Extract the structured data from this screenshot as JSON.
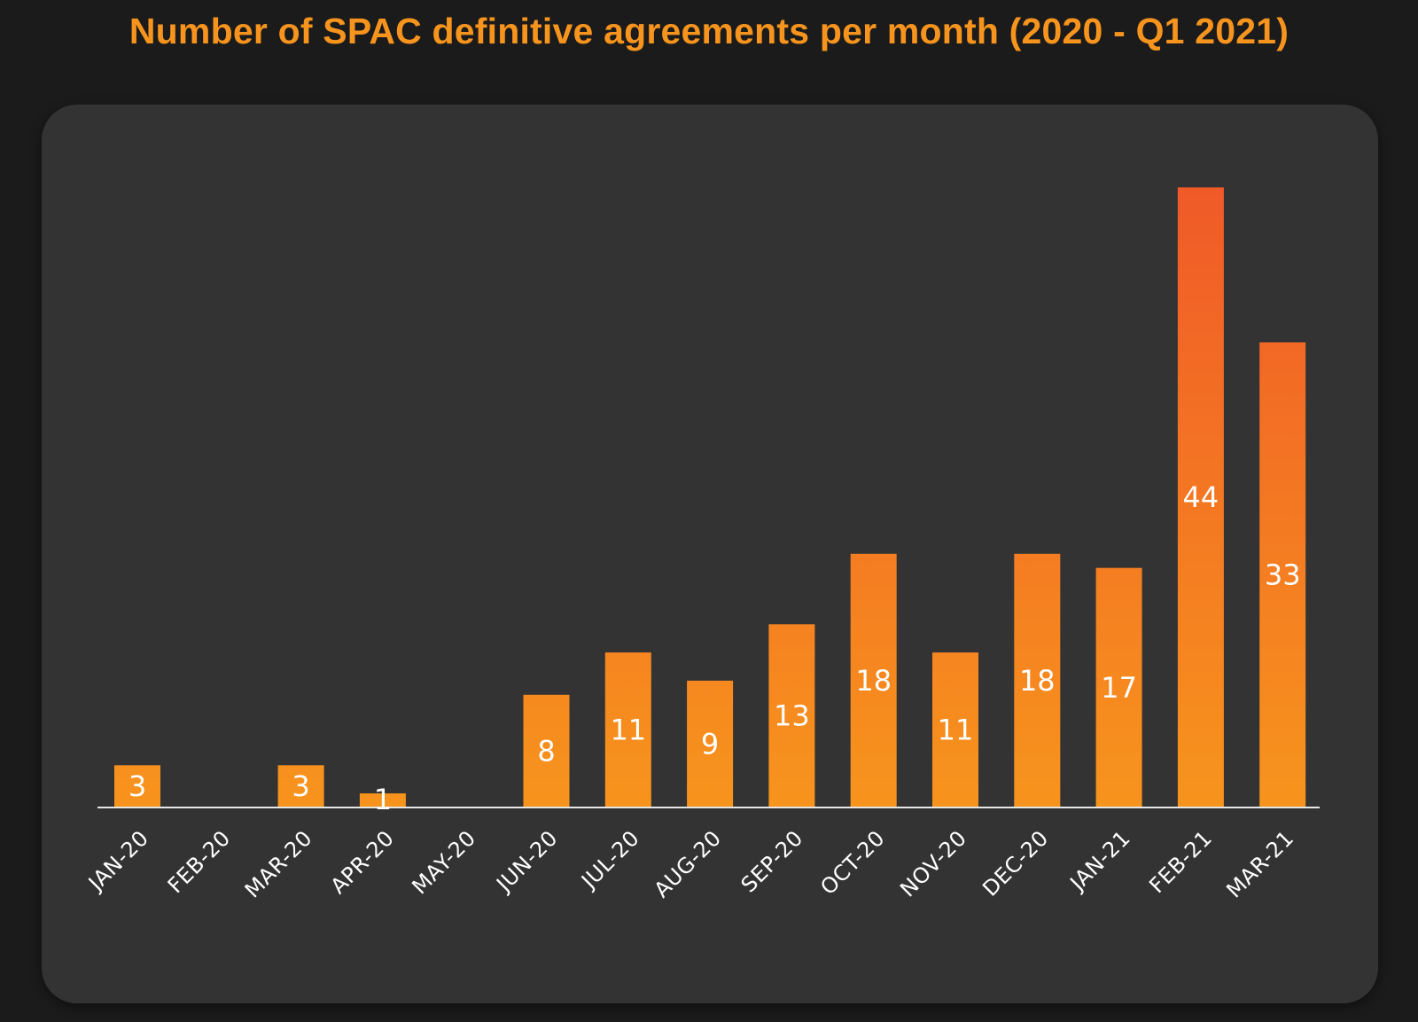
{
  "chart_data": {
    "type": "bar",
    "title": "Number of SPAC definitive agreements per month (2020 - Q1 2021)",
    "xlabel": "",
    "ylabel": "",
    "categories": [
      "JAN-20",
      "FEB-20",
      "MAR-20",
      "APR-20",
      "MAY-20",
      "JUN-20",
      "JUL-20",
      "AUG-20",
      "SEP-20",
      "OCT-20",
      "NOV-20",
      "DEC-20",
      "JAN-21",
      "FEB-21",
      "MAR-21"
    ],
    "values": [
      3,
      0,
      3,
      1,
      0,
      8,
      11,
      9,
      13,
      18,
      11,
      18,
      17,
      44,
      33
    ],
    "value_labels": [
      "3",
      "",
      "3",
      "1",
      "",
      "8",
      "11",
      "9",
      "13",
      "18",
      "11",
      "18",
      "17",
      "44",
      "33"
    ],
    "ylim": [
      0,
      50
    ],
    "grid": false,
    "legend": "none",
    "colors": {
      "title": "#f7941d",
      "bar_top": "#f05a28",
      "bar_bottom": "#f7941d",
      "background": "#1b1b1b",
      "panel": "#333333",
      "label_text": "#ffffff",
      "baseline": "#e6e6e6"
    }
  }
}
